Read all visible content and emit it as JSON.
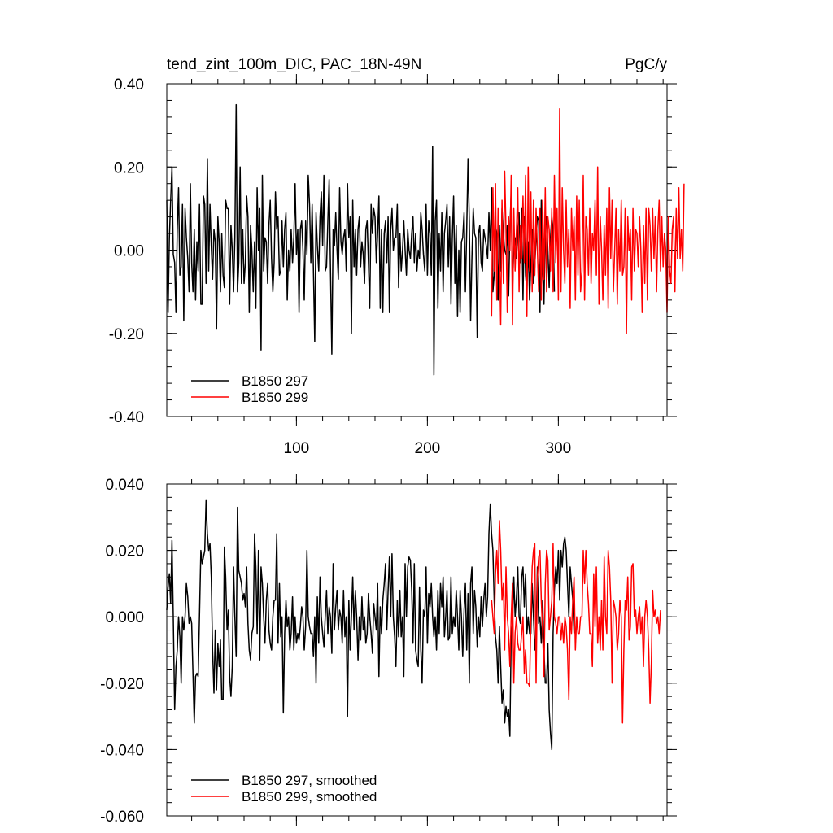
{
  "chart_data": [
    {
      "type": "line",
      "title": "tend_zint_100m_DIC, PAC_18N-49N",
      "units": "PgC/y",
      "xlim": [
        1,
        383
      ],
      "ylim": [
        -0.4,
        0.4
      ],
      "xticks": [
        "100",
        "200",
        "300"
      ],
      "yticks": [
        "0.40",
        "0.20",
        "0.00",
        "-0.20",
        "-0.40"
      ],
      "legend_position": "bottom-left",
      "series": [
        {
          "name": "B1850 297",
          "color": "#000000",
          "x_start": 1,
          "values": [
            0.12,
            -0.15,
            0.03,
            0.12,
            0.2,
            -0.01,
            -0.03,
            -0.15,
            0.05,
            0.15,
            -0.06,
            -0.04,
            0.11,
            -0.17,
            0.1,
            0.03,
            -0.02,
            -0.1,
            0.16,
            -0.03,
            -0.1,
            0.05,
            -0.12,
            0.02,
            -0.05,
            0.11,
            -0.13,
            -0.13,
            0.13,
            0.11,
            -0.08,
            0.22,
            -0.05,
            0.11,
            0.01,
            -0.07,
            0.05,
            0.02,
            -0.19,
            0.08,
            0.02,
            -0.1,
            0.04,
            -0.06,
            -0.09,
            0.12,
            0.1,
            0.1,
            -0.13,
            0.06,
            0.0,
            -0.1,
            0.03,
            0.35,
            -0.1,
            -0.03,
            0.2,
            -0.08,
            0.05,
            -0.08,
            -0.03,
            0.13,
            0.08,
            -0.15,
            0.06,
            0.0,
            -0.1,
            0.02,
            -0.14,
            0.15,
            0.0,
            0.1,
            -0.24,
            0.18,
            -0.05,
            0.03,
            0.02,
            -0.08,
            0.06,
            0.12,
            -0.02,
            -0.1,
            -0.03,
            0.14,
            0.05,
            0.08,
            -0.06,
            -0.05,
            0.07,
            -0.04,
            0.05,
            0.09,
            -0.12,
            0.0,
            -0.05,
            0.05,
            -0.03,
            0.03,
            0.16,
            -0.01,
            0.05,
            -0.15,
            0.05,
            0.07,
            0.0,
            -0.12,
            0.07,
            -0.01,
            0.18,
            0.11,
            -0.03,
            0.11,
            -0.05,
            -0.22,
            0.09,
            0.01,
            -0.05,
            0.08,
            0.14,
            0.01,
            0.18,
            -0.05,
            -0.04,
            0.07,
            0.17,
            -0.04,
            -0.25,
            0.05,
            0.01,
            0.09,
            0.0,
            -0.07,
            0.15,
            0.02,
            -0.01,
            0.03,
            0.05,
            -0.05,
            0.16,
            0.03,
            0.08,
            -0.2,
            0.12,
            -0.04,
            0.05,
            -0.06,
            0.05,
            0.08,
            -0.04,
            0.02,
            -0.01,
            -0.08,
            0.05,
            0.07,
            -0.03,
            -0.14,
            0.11,
            0.04,
            0.1,
            0.08,
            -0.03,
            0.04,
            0.13,
            -0.14,
            0.05,
            -0.15,
            0.04,
            0.07,
            -0.03,
            0.08,
            -0.15,
            0.05,
            0.1,
            0.0,
            0.03,
            0.03,
            0.11,
            -0.09,
            0.04,
            -0.05,
            0.0,
            0.07,
            0.0,
            -0.06,
            0.05,
            0.0,
            -0.02,
            0.04,
            0.08,
            -0.03,
            0.04,
            -0.05,
            0.0,
            -0.02,
            0.09,
            0.05,
            -0.01,
            -0.05,
            0.11,
            -0.06,
            0.07,
            0.04,
            -0.06,
            0.25,
            -0.3,
            0.07,
            0.12,
            -0.14,
            0.04,
            -0.05,
            0.09,
            -0.1,
            0.04,
            0.07,
            0.11,
            -0.04,
            0.08,
            -0.13,
            0.03,
            0.13,
            -0.08,
            0.06,
            -0.16,
            0.0,
            -0.15,
            0.02,
            0.03,
            0.09,
            -0.1,
            0.05,
            0.22,
            0.07,
            -0.17,
            -0.02,
            0.1,
            0.04,
            0.03,
            -0.21,
            0.04,
            0.06,
            -0.03,
            -0.05,
            0.05,
            0.03,
            0.01,
            -0.02,
            0.09,
            0.0,
            0.15,
            -0.1,
            -0.06,
            0.06,
            0.04,
            -0.12,
            0.06,
            -0.05,
            0.1,
            0.04,
            0.0,
            -0.01,
            0.06,
            -0.11,
            0.05,
            0.14,
            -0.1,
            0.01,
            0.03,
            -0.02,
            0.05,
            0.09,
            -0.03,
            0.1,
            -0.12,
            0.08,
            -0.06,
            -0.1,
            0.02,
            -0.12,
            -0.03,
            0.05,
            -0.08,
            -0.04,
            0.03,
            0.08,
            0.07,
            -0.15,
            0.12,
            -0.05,
            -0.13,
            0.06,
            0.08,
            0.0,
            -0.09,
            0.03,
            0.08,
            0.05,
            -0.1
          ]
        },
        {
          "name": "B1850 299",
          "color": "#ff0000",
          "x_start": 249,
          "values": [
            -0.16,
            0.15,
            -0.05,
            0.16,
            -0.12,
            0.1,
            0.0,
            -0.18,
            0.12,
            -0.08,
            0.19,
            0.05,
            -0.15,
            0.08,
            0.0,
            0.18,
            -0.18,
            0.1,
            -0.05,
            0.05,
            0.15,
            -0.1,
            0.06,
            -0.02,
            0.13,
            -0.03,
            0.18,
            -0.16,
            0.2,
            -0.05,
            0.14,
            -0.1,
            0.12,
            -0.06,
            0.1,
            0.0,
            -0.1,
            0.1,
            -0.12,
            0.12,
            -0.07,
            0.15,
            -0.1,
            0.08,
            0.05,
            -0.05,
            0.1,
            -0.1,
            0.18,
            -0.03,
            0.1,
            -0.12,
            0.34,
            -0.1,
            0.15,
            0.0,
            -0.08,
            0.12,
            -0.04,
            0.05,
            -0.14,
            0.1,
            0.0,
            0.08,
            -0.12,
            0.13,
            -0.06,
            0.12,
            -0.1,
            -0.05,
            0.18,
            -0.12,
            0.08,
            0.05,
            -0.06,
            0.1,
            -0.08,
            0.04,
            0.0,
            0.12,
            -0.06,
            0.2,
            -0.13,
            0.08,
            0.0,
            -0.12,
            0.06,
            -0.06,
            0.1,
            -0.14,
            0.15,
            -0.02,
            0.12,
            -0.1,
            0.0,
            0.1,
            -0.13,
            0.05,
            -0.05,
            0.12,
            -0.06,
            -0.04,
            0.1,
            -0.2,
            0.08,
            0.0,
            0.05,
            -0.12,
            0.1,
            -0.05,
            0.05,
            0.04,
            -0.04,
            0.08,
            0.0,
            -0.15,
            0.06,
            -0.08,
            0.1,
            -0.12,
            0.1,
            0.06,
            -0.05,
            0.1,
            -0.02,
            0.08,
            -0.1,
            0.05,
            0.12,
            -0.05,
            0.08,
            -0.04,
            0.04,
            0.0,
            -0.15,
            0.08,
            -0.05,
            -0.08,
            0.05,
            0.08,
            -0.1,
            0.1,
            -0.02,
            0.15,
            -0.02,
            0.05,
            -0.05,
            0.16
          ]
        }
      ]
    },
    {
      "type": "line",
      "xlim": [
        1,
        383
      ],
      "ylim": [
        -0.06,
        0.04
      ],
      "yticks": [
        "0.040",
        "0.020",
        "0.000",
        "-0.020",
        "-0.040",
        "-0.060"
      ],
      "legend_position": "bottom-left",
      "series": [
        {
          "name": "B1850 297, smoothed",
          "color": "#000000",
          "x_start": 1,
          "values": [
            0.002,
            0.009,
            0.013,
            0.004,
            0.023,
            0.0,
            -0.028,
            -0.015,
            -0.01,
            0.0,
            -0.006,
            -0.02,
            0.0,
            -0.004,
            0.0,
            0.01,
            0.006,
            -0.002,
            0.0,
            -0.002,
            -0.017,
            -0.032,
            -0.018,
            -0.017,
            -0.018,
            0.0,
            0.02,
            0.016,
            0.018,
            0.02,
            0.035,
            0.025,
            0.02,
            0.022,
            0.012,
            -0.01,
            -0.023,
            -0.004,
            -0.022,
            -0.008,
            -0.015,
            -0.007,
            -0.025,
            -0.025,
            0.021,
            0.012,
            -0.004,
            0.002,
            -0.018,
            -0.024,
            -0.015,
            0.015,
            0.0,
            -0.012,
            0.033,
            0.014,
            0.012,
            0.01,
            0.005,
            0.007,
            0.003,
            0.015,
            -0.002,
            -0.01,
            -0.013,
            -0.005,
            -0.003,
            0.025,
            0.015,
            -0.005,
            0.02,
            -0.013,
            0.015,
            0.01,
            0.0,
            -0.008,
            0.005,
            0.01,
            -0.004,
            -0.008,
            -0.01,
            0.0,
            0.005,
            0.005,
            0.025,
            -0.008,
            0.01,
            -0.006,
            0.0,
            -0.029,
            -0.005,
            0.005,
            -0.003,
            0.0,
            -0.01,
            -0.005,
            0.006,
            -0.01,
            0.0,
            -0.008,
            -0.005,
            -0.007,
            -0.003,
            0.003,
            0.0,
            -0.01,
            -0.003,
            0.02,
            0.0,
            -0.003,
            -0.005,
            -0.005,
            -0.012,
            0.0,
            -0.02,
            0.006,
            -0.008,
            0.012,
            0.0,
            -0.005,
            -0.009,
            0.0,
            0.008,
            -0.005,
            0.003,
            0.0,
            -0.011,
            0.016,
            -0.004,
            0.003,
            0.008,
            -0.004,
            0.002,
            0.0,
            -0.008,
            0.008,
            -0.006,
            0.0,
            -0.03,
            0.005,
            -0.01,
            0.0,
            0.012,
            -0.004,
            0.008,
            0.0,
            -0.013,
            0.0,
            -0.007,
            0.006,
            -0.004,
            0.0,
            -0.008,
            -0.005,
            0.007,
            0.0,
            -0.005,
            -0.011,
            0.004,
            0.0,
            -0.004,
            0.01,
            -0.018,
            0.003,
            -0.005,
            0.005,
            0.01,
            0.016,
            -0.004,
            0.008,
            0.018,
            0.0,
            0.019,
            0.0,
            -0.006,
            -0.015,
            0.005,
            -0.006,
            0.008,
            -0.006,
            0.0,
            -0.018,
            0.016,
            0.0,
            0.015,
            0.018,
            0.017,
            0.008,
            -0.008,
            0.016,
            -0.01,
            -0.013,
            -0.015,
            0.009,
            -0.01,
            -0.02,
            0.002,
            0.0,
            0.015,
            -0.008,
            0.007,
            0.003,
            0.01,
            0.0,
            -0.006,
            0.0,
            -0.01,
            0.008,
            -0.005,
            0.01,
            0.003,
            0.012,
            -0.006,
            0.0,
            0.008,
            -0.007,
            -0.006,
            0.012,
            -0.005,
            0.0,
            -0.003,
            0.008,
            0.0,
            -0.01,
            0.008,
            0.0,
            -0.012,
            0.002,
            0.01,
            -0.01,
            0.007,
            -0.02,
            0.01,
            0.015,
            -0.005,
            0.008,
            0.003,
            -0.009,
            0.0,
            -0.006,
            0.006,
            -0.003,
            0.005,
            0.01,
            0.0,
            0.006,
            0.025,
            0.034,
            0.025,
            0.02,
            0.005,
            -0.006,
            -0.01,
            -0.02,
            -0.003,
            -0.015,
            -0.026,
            -0.022,
            -0.032,
            -0.027,
            -0.03,
            -0.028,
            -0.036,
            -0.005,
            -0.002,
            0.012,
            0.0,
            0.006,
            0.015,
            0.0,
            -0.002,
            0.012,
            0.015,
            0.003,
            0.013,
            -0.005,
            0.0,
            -0.005,
            -0.005,
            0.01,
            0.0,
            -0.01,
            -0.005,
            0.015,
            -0.002,
            0.0,
            -0.008,
            0.005,
            -0.01,
            -0.02,
            -0.02,
            -0.008,
            -0.028,
            -0.035,
            -0.04,
            -0.005,
            0.008,
            0.015,
            0.01,
            0.02,
            0.005,
            0.02,
            0.015,
            0.022,
            0.024,
            0.02,
            0.01,
            0.0,
            0.015,
            0.01,
            0.005,
            -0.005
          ]
        },
        {
          "name": "B1850 299, smoothed",
          "color": "#ff0000",
          "x_start": 249,
          "values": [
            0.005,
            0.0,
            -0.005,
            0.013,
            0.02,
            0.01,
            0.029,
            0.02,
            0.005,
            0.01,
            -0.01,
            0.015,
            0.0,
            -0.005,
            -0.015,
            0.0,
            0.01,
            -0.02,
            -0.005,
            0.0,
            -0.008,
            -0.01,
            -0.01,
            -0.005,
            0.0,
            -0.017,
            -0.01,
            -0.02,
            -0.02,
            -0.021,
            0.0,
            0.015,
            0.02,
            0.022,
            -0.02,
            0.012,
            0.018,
            0.02,
            0.005,
            -0.005,
            -0.018,
            0.01,
            0.02,
            0.017,
            -0.004,
            0.0,
            0.005,
            0.022,
            0.0,
            -0.002,
            -0.005,
            0.0,
            0.0,
            -0.007,
            -0.002,
            -0.008,
            0.0,
            -0.003,
            -0.01,
            -0.025,
            0.0,
            -0.005,
            0.005,
            0.012,
            -0.01,
            0.0,
            -0.005,
            -0.005,
            0.0,
            0.0,
            0.02,
            0.01,
            0.02,
            0.01,
            0.004,
            -0.005,
            -0.005,
            -0.015,
            0.013,
            -0.003,
            0.015,
            -0.008,
            0.0,
            -0.01,
            0.005,
            -0.01,
            0.018,
            0.0,
            -0.005,
            0.02,
            0.015,
            0.005,
            -0.02,
            0.005,
            0.003,
            0.0,
            -0.01,
            -0.005,
            0.005,
            0.0,
            -0.032,
            -0.01,
            0.005,
            0.002,
            0.012,
            -0.007,
            -0.003,
            0.015,
            0.016,
            0.0,
            0.002,
            -0.005,
            0.0,
            0.003,
            -0.005,
            0.0,
            -0.015,
            0.0,
            0.005,
            0.0,
            -0.01,
            -0.026,
            -0.014,
            0.008,
            0.0,
            0.002,
            -0.002,
            0.0,
            -0.005,
            0.002
          ]
        }
      ]
    }
  ]
}
